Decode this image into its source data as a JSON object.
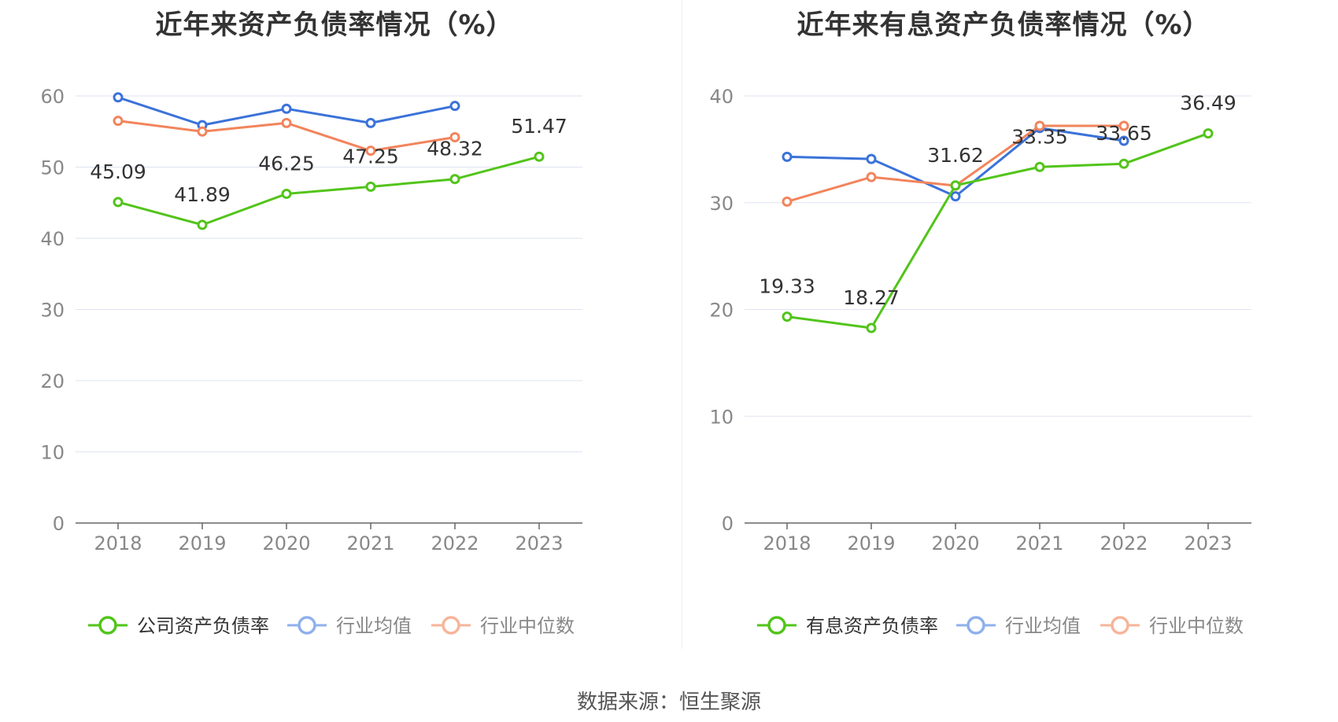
{
  "footer": {
    "source": "数据来源：恒生聚源"
  },
  "chart_data": [
    {
      "type": "line",
      "title": "近年来资产负债率情况（%）",
      "categories": [
        "2018",
        "2019",
        "2020",
        "2021",
        "2022",
        "2023"
      ],
      "ylim": [
        0,
        60
      ],
      "yticks": [
        0,
        10,
        20,
        30,
        40,
        50,
        60
      ],
      "grid": true,
      "legend_position": "bottom",
      "series": [
        {
          "name": "公司资产负债率",
          "color": "#52c41a",
          "values": [
            45.09,
            41.89,
            46.25,
            47.25,
            48.32,
            51.47
          ],
          "labels": [
            "45.09",
            "41.89",
            "46.25",
            "47.25",
            "48.32",
            "51.47"
          ],
          "show_labels": true
        },
        {
          "name": "行业均值",
          "color": "#3b72d9",
          "values": [
            59.8,
            55.9,
            58.2,
            56.2,
            58.6,
            null
          ],
          "show_labels": false
        },
        {
          "name": "行业中位数",
          "color": "#f2845c",
          "values": [
            56.5,
            55.0,
            56.2,
            52.3,
            54.2,
            null
          ],
          "show_labels": false
        }
      ]
    },
    {
      "type": "line",
      "title": "近年来有息资产负债率情况（%）",
      "categories": [
        "2018",
        "2019",
        "2020",
        "2021",
        "2022",
        "2023"
      ],
      "ylim": [
        0,
        40
      ],
      "yticks": [
        0,
        10,
        20,
        30,
        40
      ],
      "grid": true,
      "legend_position": "bottom",
      "series": [
        {
          "name": "有息资产负债率",
          "color": "#52c41a",
          "values": [
            19.33,
            18.27,
            31.62,
            33.35,
            33.65,
            36.49
          ],
          "labels": [
            "19.33",
            "18.27",
            "31.62",
            "33.35",
            "33.65",
            "36.49"
          ],
          "show_labels": true
        },
        {
          "name": "行业均值",
          "color": "#3b72d9",
          "values": [
            34.3,
            34.1,
            30.6,
            37.0,
            35.8,
            null
          ],
          "show_labels": false
        },
        {
          "name": "行业中位数",
          "color": "#f2845c",
          "values": [
            30.1,
            32.4,
            31.6,
            37.2,
            37.2,
            null
          ],
          "show_labels": false
        }
      ]
    }
  ]
}
